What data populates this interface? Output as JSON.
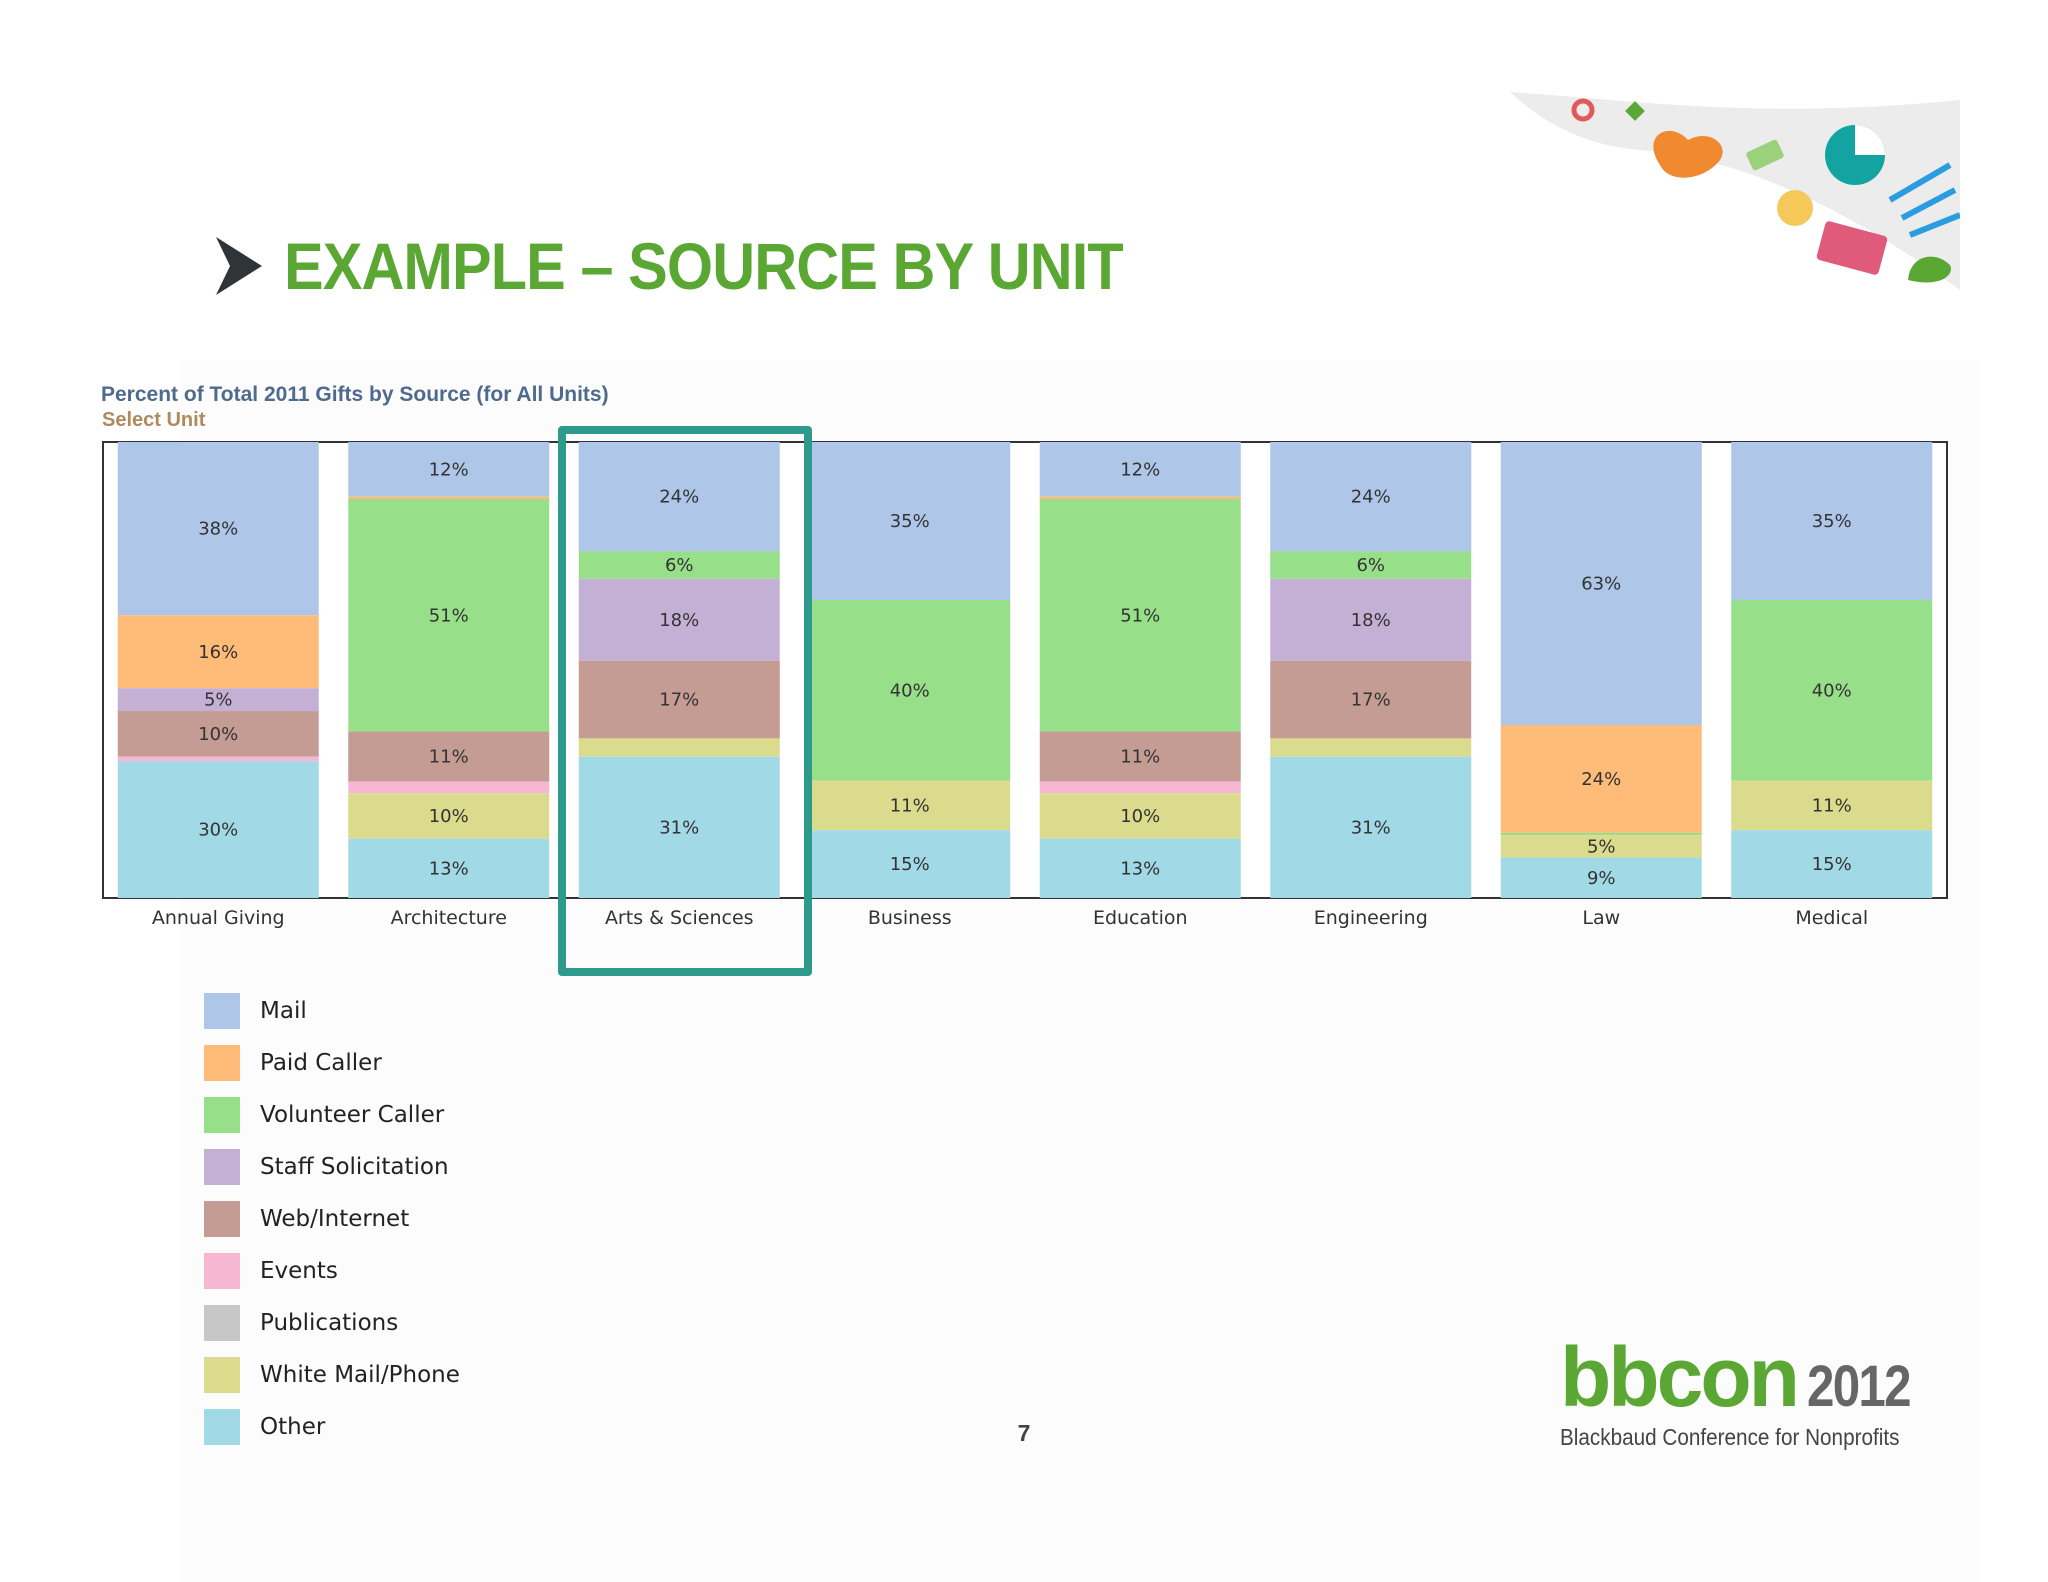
{
  "slide": {
    "title": "EXAMPLE – SOURCE BY UNIT",
    "page_number": "7"
  },
  "logo": {
    "brand": "bbcon",
    "year": "2012",
    "tagline": "Blackbaud Conference for Nonprofits"
  },
  "chart_data": {
    "type": "bar",
    "stacked": true,
    "title": "Percent of Total 2011 Gifts by Source (for All Units)",
    "subtitle": "Select Unit",
    "xlabel": "",
    "ylabel": "",
    "ylim": [
      0,
      100
    ],
    "grid": false,
    "legend_position": "bottom-left",
    "highlighted_category": "Arts & Sciences",
    "categories": [
      "Annual Giving",
      "Architecture",
      "Arts & Sciences",
      "Business",
      "Education",
      "Engineering",
      "Law",
      "Medical"
    ],
    "series": [
      {
        "name": "Mail",
        "color": "#aec6e8",
        "values": [
          38,
          12,
          24,
          35,
          12,
          24,
          63,
          35
        ]
      },
      {
        "name": "Paid Caller",
        "color": "#ffbb78",
        "values": [
          16,
          0.5,
          0,
          0,
          0.5,
          0,
          24,
          0
        ]
      },
      {
        "name": "Volunteer Caller",
        "color": "#98df8a",
        "values": [
          0,
          51,
          6,
          40,
          51,
          6,
          0.5,
          40
        ]
      },
      {
        "name": "Staff Solicitation",
        "color": "#c5b0d5",
        "values": [
          5,
          0,
          18,
          0,
          0,
          18,
          0,
          0
        ]
      },
      {
        "name": "Web/Internet",
        "color": "#c49c94",
        "values": [
          10,
          11,
          17,
          0,
          11,
          17,
          0,
          0
        ]
      },
      {
        "name": "Events",
        "color": "#f7b6d2",
        "values": [
          1,
          2.5,
          0,
          0,
          2.5,
          0,
          0,
          0
        ]
      },
      {
        "name": "Publications",
        "color": "#c7c7c7",
        "values": [
          0,
          0,
          0,
          0,
          0,
          0,
          0,
          0
        ]
      },
      {
        "name": "White Mail/Phone",
        "color": "#dbdb8d",
        "values": [
          0,
          10,
          4,
          11,
          10,
          4,
          5,
          11
        ]
      },
      {
        "name": "Other",
        "color": "#a2d9e6",
        "values": [
          30,
          13,
          31,
          15,
          13,
          31,
          9,
          15
        ]
      }
    ],
    "labels": [
      [
        "38%",
        "16%",
        "",
        "5%",
        "10%",
        "",
        "",
        "",
        "30%"
      ],
      [
        "12%",
        "",
        "51%",
        "",
        "11%",
        "",
        "",
        "10%",
        "13%"
      ],
      [
        "24%",
        "",
        "6%",
        "18%",
        "17%",
        "",
        "",
        "",
        "31%"
      ],
      [
        "35%",
        "",
        "40%",
        "",
        "",
        "",
        "",
        "11%",
        "15%"
      ],
      [
        "12%",
        "",
        "51%",
        "",
        "11%",
        "",
        "",
        "10%",
        "13%"
      ],
      [
        "24%",
        "",
        "6%",
        "18%",
        "17%",
        "",
        "",
        "",
        "31%"
      ],
      [
        "63%",
        "24%",
        "",
        "",
        "",
        "",
        "",
        "5%",
        "9%"
      ],
      [
        "35%",
        "",
        "40%",
        "",
        "",
        "",
        "",
        "11%",
        "15%"
      ]
    ]
  }
}
